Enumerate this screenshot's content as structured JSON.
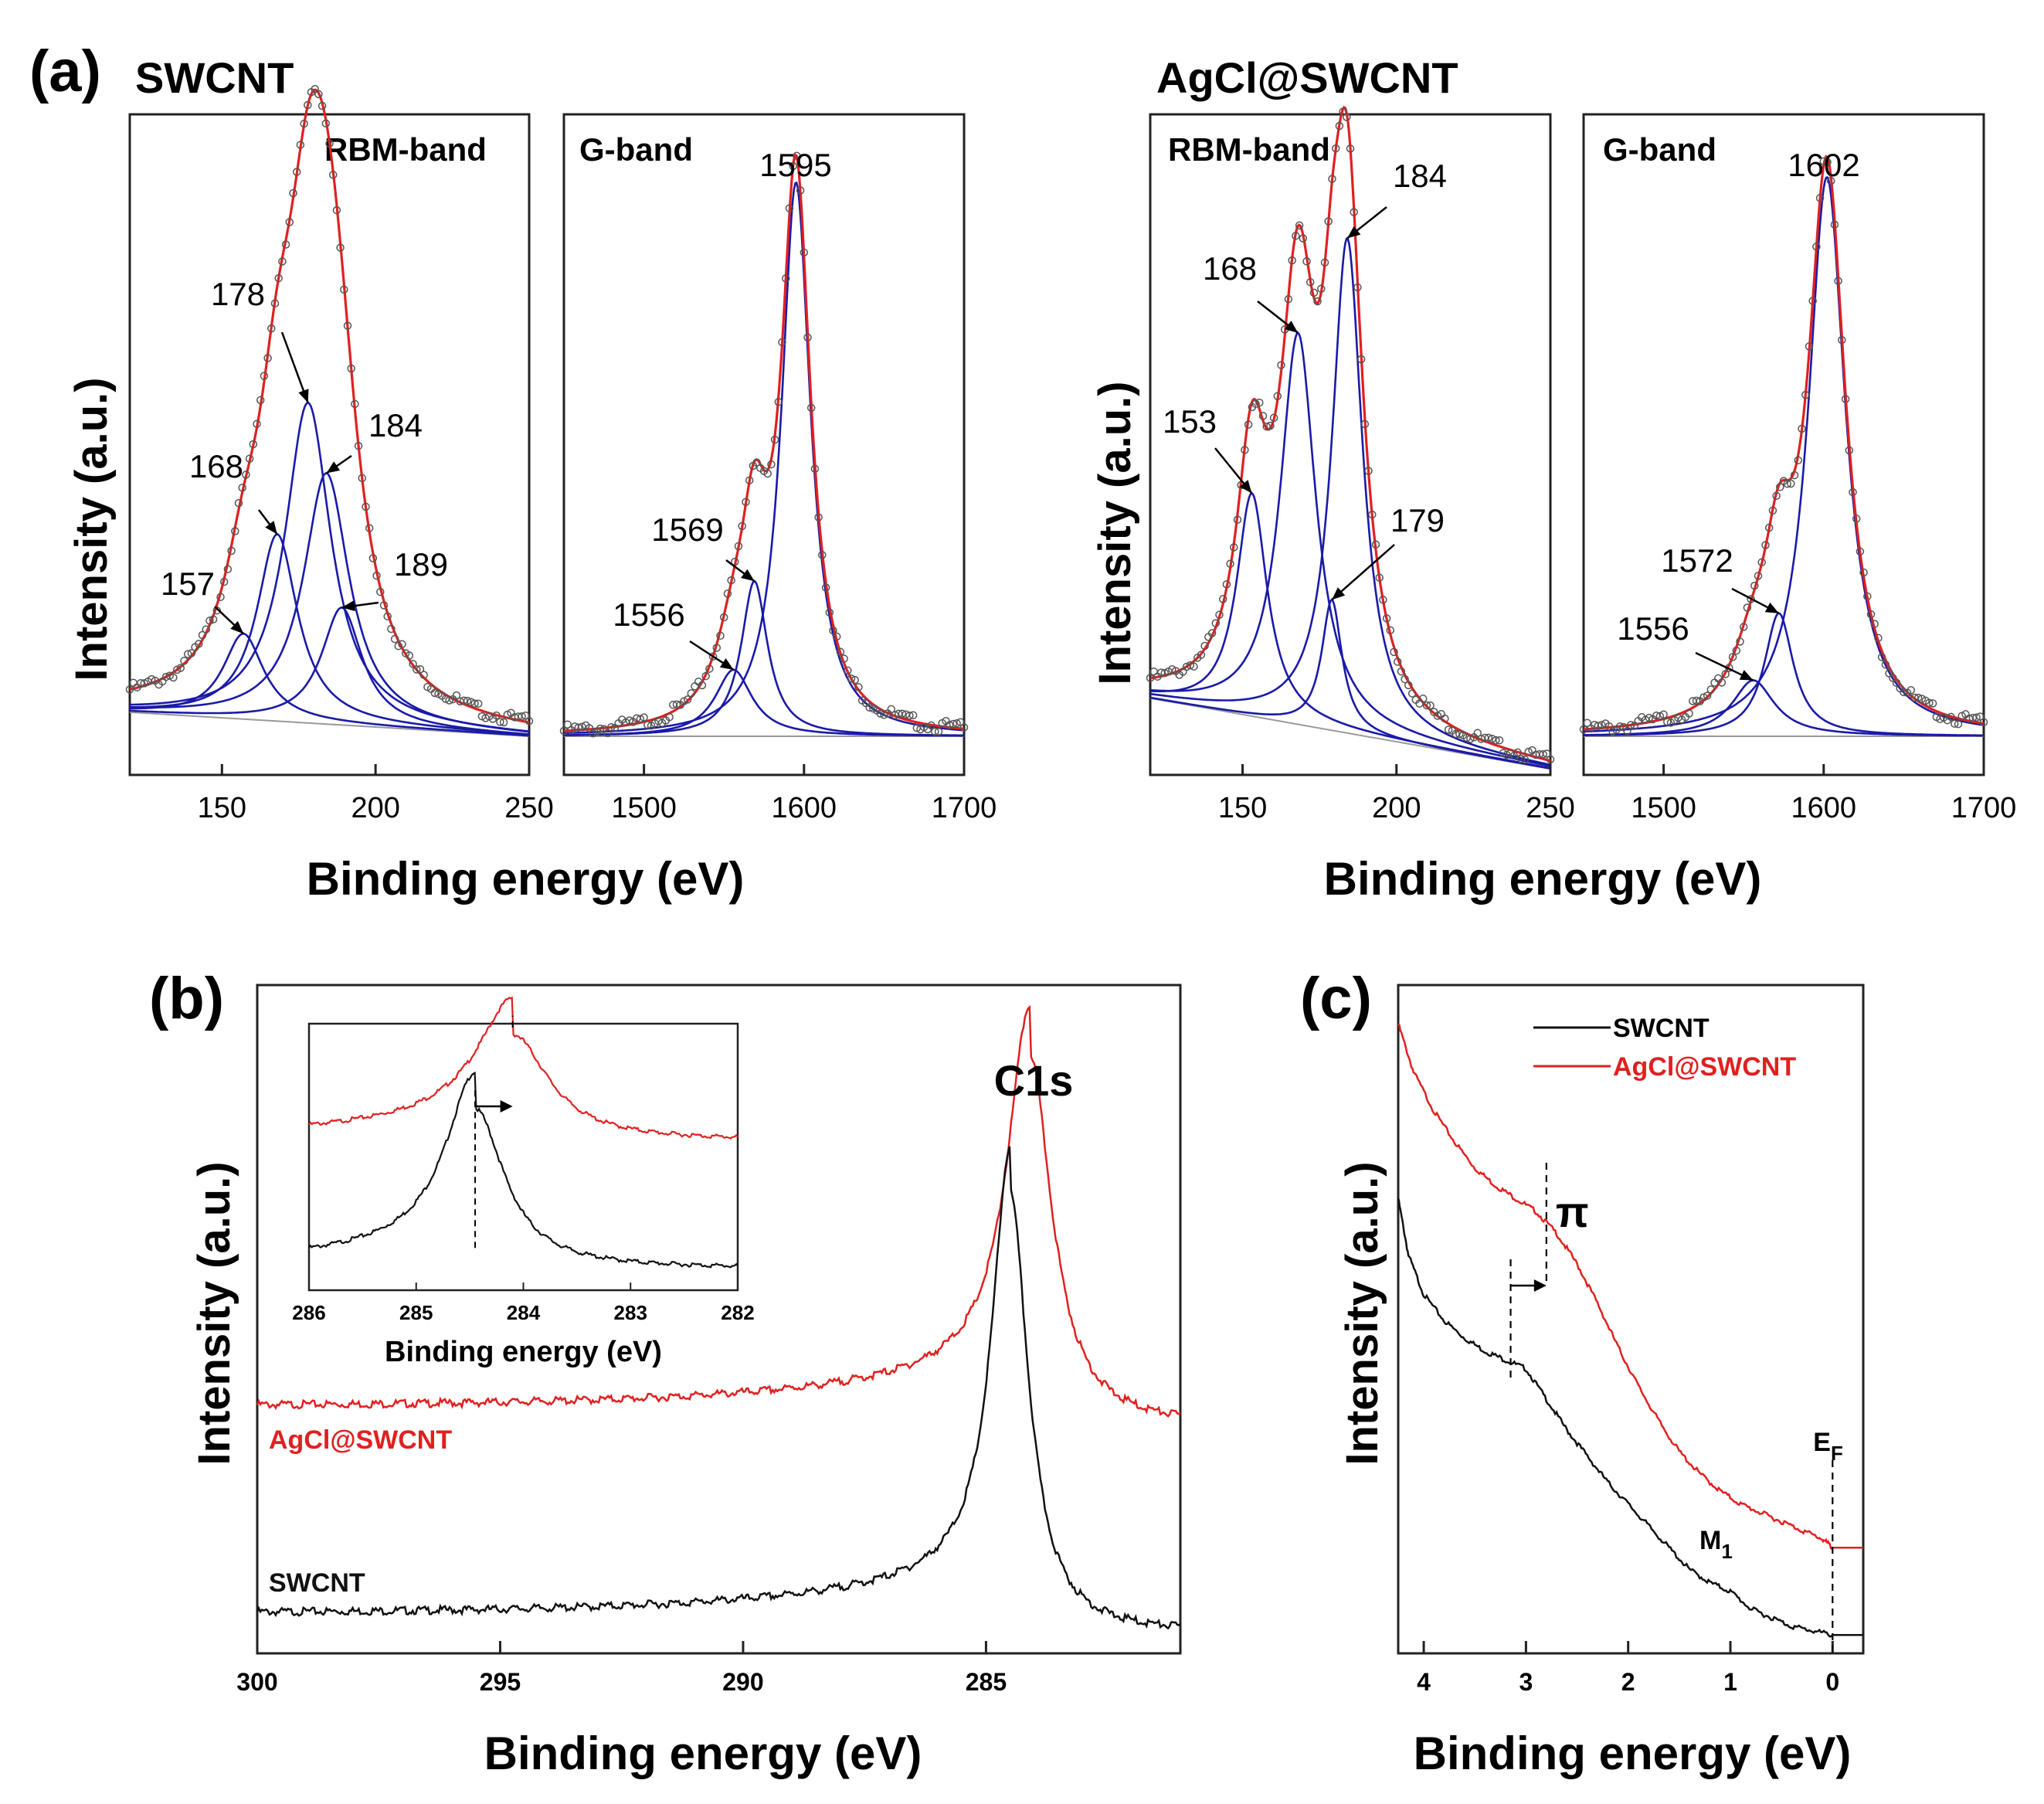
{
  "panel_letters": {
    "a": "(a)",
    "b": "(b)",
    "c": "(c)"
  },
  "colors": {
    "fit": "#e02020",
    "component": "#1a1aa8",
    "baseline": "#999999",
    "data_points": "#555555",
    "swcnt": "#111111",
    "agcl": "#e02020"
  },
  "chart_data": [
    {
      "id": "a1",
      "type": "line",
      "panel": "(a)",
      "sample": "SWCNT",
      "title": "RBM-band",
      "xlabel": "Binding energy (eV)",
      "ylabel": "Intensity (a.u.)",
      "xlim": [
        120,
        250
      ],
      "xticks": [
        150,
        200,
        250
      ],
      "xtick_labels": [
        "150",
        "200",
        "250"
      ],
      "baseline": [
        [
          120,
          0.045
        ],
        [
          250,
          0.0
        ]
      ],
      "fit_peak_height": 1.0,
      "components": [
        {
          "center": 157,
          "height": 0.16,
          "width": 8
        },
        {
          "center": 168,
          "height": 0.35,
          "width": 8
        },
        {
          "center": 178,
          "height": 0.6,
          "width": 9
        },
        {
          "center": 184,
          "height": 0.47,
          "width": 9
        },
        {
          "center": 189,
          "height": 0.22,
          "width": 8
        }
      ],
      "peak_labels": [
        {
          "text": "157",
          "x": 157
        },
        {
          "text": "168",
          "x": 168
        },
        {
          "text": "178",
          "x": 178
        },
        {
          "text": "184",
          "x": 184
        },
        {
          "text": "189",
          "x": 189
        }
      ]
    },
    {
      "id": "a2",
      "type": "line",
      "panel": "(a)",
      "sample": "SWCNT",
      "title": "G-band",
      "xlabel": "Binding energy (eV)",
      "ylabel": "Intensity (a.u.)",
      "xlim": [
        1450,
        1700
      ],
      "xticks": [
        1500,
        1600,
        1700
      ],
      "xtick_labels": [
        "1500",
        "1600",
        "1700"
      ],
      "baseline": [
        [
          1450,
          0.0
        ],
        [
          1700,
          0.0
        ]
      ],
      "components": [
        {
          "center": 1556,
          "height": 0.12,
          "width": 14
        },
        {
          "center": 1569,
          "height": 0.28,
          "width": 10
        },
        {
          "center": 1595,
          "height": 1.0,
          "width": 11
        }
      ],
      "peak_labels": [
        {
          "text": "1556",
          "x": 1556
        },
        {
          "text": "1569",
          "x": 1569
        },
        {
          "text": "1595",
          "x": 1595
        }
      ]
    },
    {
      "id": "a3",
      "type": "line",
      "panel": "(a)",
      "sample": "AgCl@SWCNT",
      "title": "RBM-band",
      "xlabel": "Binding energy (eV)",
      "ylabel": "Intensity (a.u.)",
      "xlim": [
        120,
        250
      ],
      "xticks": [
        150,
        200,
        250
      ],
      "xtick_labels": [
        "150",
        "200",
        "250"
      ],
      "baseline": [
        [
          120,
          0.07
        ],
        [
          250,
          -0.06
        ]
      ],
      "components": [
        {
          "center": 153,
          "height": 0.41,
          "width": 6
        },
        {
          "center": 168,
          "height": 0.72,
          "width": 7
        },
        {
          "center": 179,
          "height": 0.24,
          "width": 4
        },
        {
          "center": 184,
          "height": 0.91,
          "width": 6
        }
      ],
      "peak_labels": [
        {
          "text": "153",
          "x": 153
        },
        {
          "text": "168",
          "x": 168
        },
        {
          "text": "179",
          "x": 179
        },
        {
          "text": "184",
          "x": 184
        }
      ]
    },
    {
      "id": "a4",
      "type": "line",
      "panel": "(a)",
      "sample": "AgCl@SWCNT",
      "title": "G-band",
      "xlabel": "Binding energy (eV)",
      "ylabel": "Intensity (a.u.)",
      "xlim": [
        1450,
        1700
      ],
      "xticks": [
        1500,
        1600,
        1700
      ],
      "xtick_labels": [
        "1500",
        "1600",
        "1700"
      ],
      "baseline": [
        [
          1450,
          0.0
        ],
        [
          1700,
          0.0
        ]
      ],
      "components": [
        {
          "center": 1556,
          "height": 0.1,
          "width": 16
        },
        {
          "center": 1572,
          "height": 0.22,
          "width": 11
        },
        {
          "center": 1602,
          "height": 1.0,
          "width": 14
        }
      ],
      "peak_labels": [
        {
          "text": "1556",
          "x": 1556
        },
        {
          "text": "1572",
          "x": 1572
        },
        {
          "text": "1602",
          "x": 1602
        }
      ]
    },
    {
      "id": "b",
      "type": "line",
      "panel": "(b)",
      "xlabel": "Binding energy (eV)",
      "ylabel": "Intensity (a.u.)",
      "xlim": [
        300,
        281
      ],
      "xticks": [
        300,
        295,
        290,
        285
      ],
      "xtick_labels": [
        "300",
        "295",
        "290",
        "285"
      ],
      "annotation": "C1s",
      "series": [
        {
          "name": "AgCl@SWCNT",
          "offset": 0.37,
          "peak_center": 284.1,
          "peak_height": 0.53,
          "peak_width": 0.55
        },
        {
          "name": "SWCNT",
          "offset": 0.06,
          "peak_center": 284.5,
          "peak_height": 0.63,
          "peak_width": 0.45
        }
      ],
      "inset": {
        "xlabel": "Binding energy (eV)",
        "xlim": [
          286,
          282
        ],
        "xticks": [
          286,
          285,
          284,
          283,
          282
        ],
        "xtick_labels": [
          "286",
          "285",
          "284",
          "283",
          "282"
        ],
        "series": [
          {
            "name": "AgCl@SWCNT",
            "offset": 0.58,
            "peak_center": 284.1,
            "peak_height": 0.4,
            "peak_width": 0.4
          },
          {
            "name": "SWCNT",
            "offset": 0.1,
            "peak_center": 284.45,
            "peak_height": 0.6,
            "peak_width": 0.33
          }
        ]
      }
    },
    {
      "id": "c",
      "type": "line",
      "panel": "(c)",
      "xlabel": "Binding energy (eV)",
      "ylabel": "Intensity (a.u.)",
      "xlim": [
        4.25,
        -0.3
      ],
      "xticks": [
        4,
        3,
        2,
        1,
        0
      ],
      "xtick_labels": [
        "4",
        "3",
        "2",
        "1",
        "0"
      ],
      "legend": [
        "SWCNT",
        "AgCl@SWCNT"
      ],
      "annotations": {
        "pi": "π",
        "m1_main": "M",
        "m1_sub": "1",
        "ef_main": "E",
        "ef_sub": "F"
      },
      "series": [
        {
          "name": "SWCNT",
          "points": [
            [
              4.25,
              0.98
            ],
            [
              4.15,
              0.85
            ],
            [
              4.0,
              0.76
            ],
            [
              3.8,
              0.7
            ],
            [
              3.6,
              0.66
            ],
            [
              3.4,
              0.63
            ],
            [
              3.2,
              0.61
            ],
            [
              3.0,
              0.59
            ],
            [
              2.8,
              0.52
            ],
            [
              2.6,
              0.45
            ],
            [
              2.4,
              0.39
            ],
            [
              2.2,
              0.33
            ],
            [
              2.0,
              0.28
            ],
            [
              1.8,
              0.23
            ],
            [
              1.6,
              0.18
            ],
            [
              1.4,
              0.13
            ],
            [
              1.2,
              0.1
            ],
            [
              1.0,
              0.08
            ],
            [
              0.8,
              0.04
            ],
            [
              0.6,
              0.02
            ],
            [
              0.4,
              0.0
            ],
            [
              0.2,
              -0.01
            ],
            [
              0.0,
              -0.02
            ],
            [
              -0.3,
              -0.02
            ]
          ]
        },
        {
          "name": "AgCl@SWCNT",
          "points": [
            [
              4.25,
              1.38
            ],
            [
              4.1,
              1.27
            ],
            [
              3.9,
              1.18
            ],
            [
              3.7,
              1.11
            ],
            [
              3.5,
              1.05
            ],
            [
              3.3,
              1.01
            ],
            [
              3.1,
              0.98
            ],
            [
              2.9,
              0.95
            ],
            [
              2.7,
              0.9
            ],
            [
              2.5,
              0.83
            ],
            [
              2.3,
              0.74
            ],
            [
              2.1,
              0.64
            ],
            [
              1.9,
              0.55
            ],
            [
              1.7,
              0.47
            ],
            [
              1.5,
              0.4
            ],
            [
              1.3,
              0.35
            ],
            [
              1.1,
              0.31
            ],
            [
              0.9,
              0.28
            ],
            [
              0.7,
              0.26
            ],
            [
              0.5,
              0.24
            ],
            [
              0.3,
              0.22
            ],
            [
              0.1,
              0.2
            ],
            [
              0.0,
              0.18
            ],
            [
              -0.3,
              0.18
            ]
          ]
        }
      ]
    }
  ]
}
